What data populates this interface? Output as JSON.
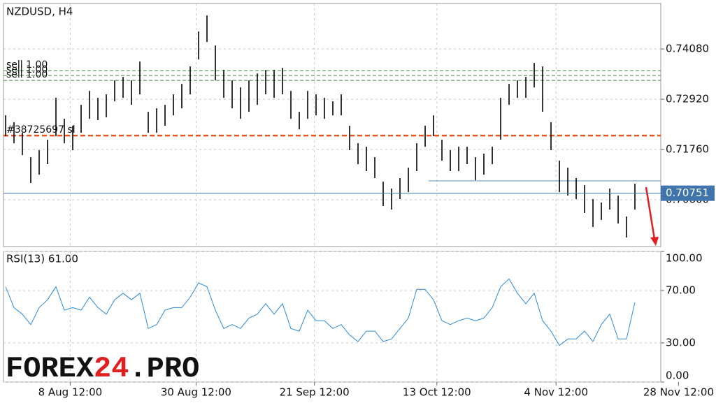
{
  "chart_data": [
    {
      "type": "ohlc",
      "title": "NZDUSD, H4",
      "color": "#000000",
      "high": [
        0.72549,
        0.72388,
        0.72147,
        0.71583,
        0.71744,
        0.71986,
        0.72952,
        0.72469,
        0.72308,
        0.72791,
        0.73113,
        0.72952,
        0.73033,
        0.73355,
        0.73436,
        0.73355,
        0.7379,
        0.7263,
        0.72711,
        0.72791,
        0.73033,
        0.73274,
        0.73677,
        0.74483,
        0.74853,
        0.74161,
        0.73597,
        0.73355,
        0.73194,
        0.73355,
        0.73516,
        0.73597,
        0.73597,
        0.73645,
        0.73113,
        0.7263,
        0.73113,
        0.73033,
        0.72952,
        0.72872,
        0.73033,
        0.72308,
        0.71905,
        0.71824,
        0.71583,
        0.71019,
        0.70858,
        0.711,
        0.71341,
        0.71905,
        0.72308,
        0.72549,
        0.71986,
        0.71744,
        0.71824,
        0.71824,
        0.71583,
        0.71663,
        0.71824,
        0.72952,
        0.73274,
        0.73355,
        0.73436,
        0.73758,
        0.73677,
        0.72388,
        0.71502,
        0.71341,
        0.711,
        0.70938,
        0.70616,
        0.70536,
        0.70858,
        0.70697,
        0.70213,
        0.70971
      ],
      "low": [
        0.72066,
        0.71905,
        0.71631,
        0.70987,
        0.7118,
        0.71422,
        0.72066,
        0.71905,
        0.71744,
        0.72147,
        0.72469,
        0.72437,
        0.72501,
        0.72872,
        0.72952,
        0.72791,
        0.73033,
        0.72147,
        0.72147,
        0.72308,
        0.72549,
        0.72711,
        0.73033,
        0.73838,
        0.74241,
        0.73355,
        0.72952,
        0.72711,
        0.72469,
        0.7263,
        0.72791,
        0.73033,
        0.72952,
        0.73033,
        0.72469,
        0.72227,
        0.72469,
        0.72549,
        0.72469,
        0.72549,
        0.72549,
        0.71744,
        0.71422,
        0.71261,
        0.711,
        0.70455,
        0.70374,
        0.70616,
        0.70777,
        0.71261,
        0.71824,
        0.72066,
        0.71502,
        0.71261,
        0.71261,
        0.71422,
        0.71051,
        0.7118,
        0.71422,
        0.71986,
        0.72791,
        0.72952,
        0.72952,
        0.73194,
        0.7263,
        0.71744,
        0.70777,
        0.70697,
        0.70616,
        0.70294,
        0.69972,
        0.70133,
        0.70374,
        0.70052,
        0.6973,
        0.70374
      ],
      "xlim": [
        -0.25,
        78.08
      ],
      "xticks": [
        {
          "value": 7.7,
          "label": "8 Aug 12:00"
        },
        {
          "value": 22.7,
          "label": "30 Aug 12:00"
        },
        {
          "value": 36.8,
          "label": "21 Sep 12:00"
        },
        {
          "value": 51.4,
          "label": "13 Oct 12:00"
        },
        {
          "value": 65.6,
          "label": "4 Nov 12:00"
        },
        {
          "value": 80.2,
          "label": "28 Nov 12:00"
        }
      ],
      "ylim": [
        0.6952,
        0.7513
      ],
      "yticks": [
        {
          "value": 0.7408,
          "label": "0.74080"
        },
        {
          "value": 0.7292,
          "label": "0.72920"
        },
        {
          "value": 0.7176,
          "label": "0.71760"
        },
        {
          "value": 0.706,
          "label": "0.70600"
        }
      ],
      "grid": true,
      "levels": [
        {
          "name": "sell 1.00",
          "value": 0.73581,
          "color": "#3d8b3d"
        },
        {
          "name": "sell 1.00",
          "value": 0.73468,
          "color": "#3d8b3d"
        },
        {
          "name": "sell 1.00",
          "value": 0.73355,
          "color": "#3d8b3d"
        },
        {
          "name": "#38725697 sl",
          "value": 0.72082,
          "color": "#e8541e"
        }
      ],
      "trendline": {
        "value": 0.71035,
        "from": 50.4,
        "color": "#5f8fb8"
      },
      "current_price": {
        "value": 0.70751,
        "label": "0.70751",
        "color": "#3f74ad"
      }
    },
    {
      "type": "line",
      "title": "RSI(13) 61.00",
      "color": "#2a8be0",
      "values": [
        73,
        57,
        52,
        44,
        57,
        63,
        73,
        55,
        57,
        55,
        65,
        57,
        52,
        63,
        68,
        63,
        68,
        41,
        44,
        55,
        57,
        57,
        65,
        76,
        73,
        55,
        41,
        44,
        41,
        49,
        52,
        60,
        52,
        60,
        41,
        39,
        55,
        47,
        47,
        41,
        44,
        36,
        31,
        39,
        39,
        31,
        33,
        41,
        49,
        71,
        71,
        63,
        47,
        44,
        47,
        49,
        47,
        49,
        57,
        73,
        79,
        68,
        60,
        68,
        47,
        39,
        28,
        33,
        33,
        39,
        31,
        44,
        52,
        33,
        33,
        61
      ],
      "xlim": [
        -0.25,
        78.08
      ],
      "ylim": [
        0,
        100
      ],
      "yticks": [
        {
          "value": 100,
          "label": "100.00"
        },
        {
          "value": 70,
          "label": "70.00"
        },
        {
          "value": 30,
          "label": "30.00"
        },
        {
          "value": 0,
          "label": "0.00"
        }
      ],
      "grid": true
    }
  ],
  "watermark": [
    "FOREX",
    "24",
    ".PRO"
  ]
}
